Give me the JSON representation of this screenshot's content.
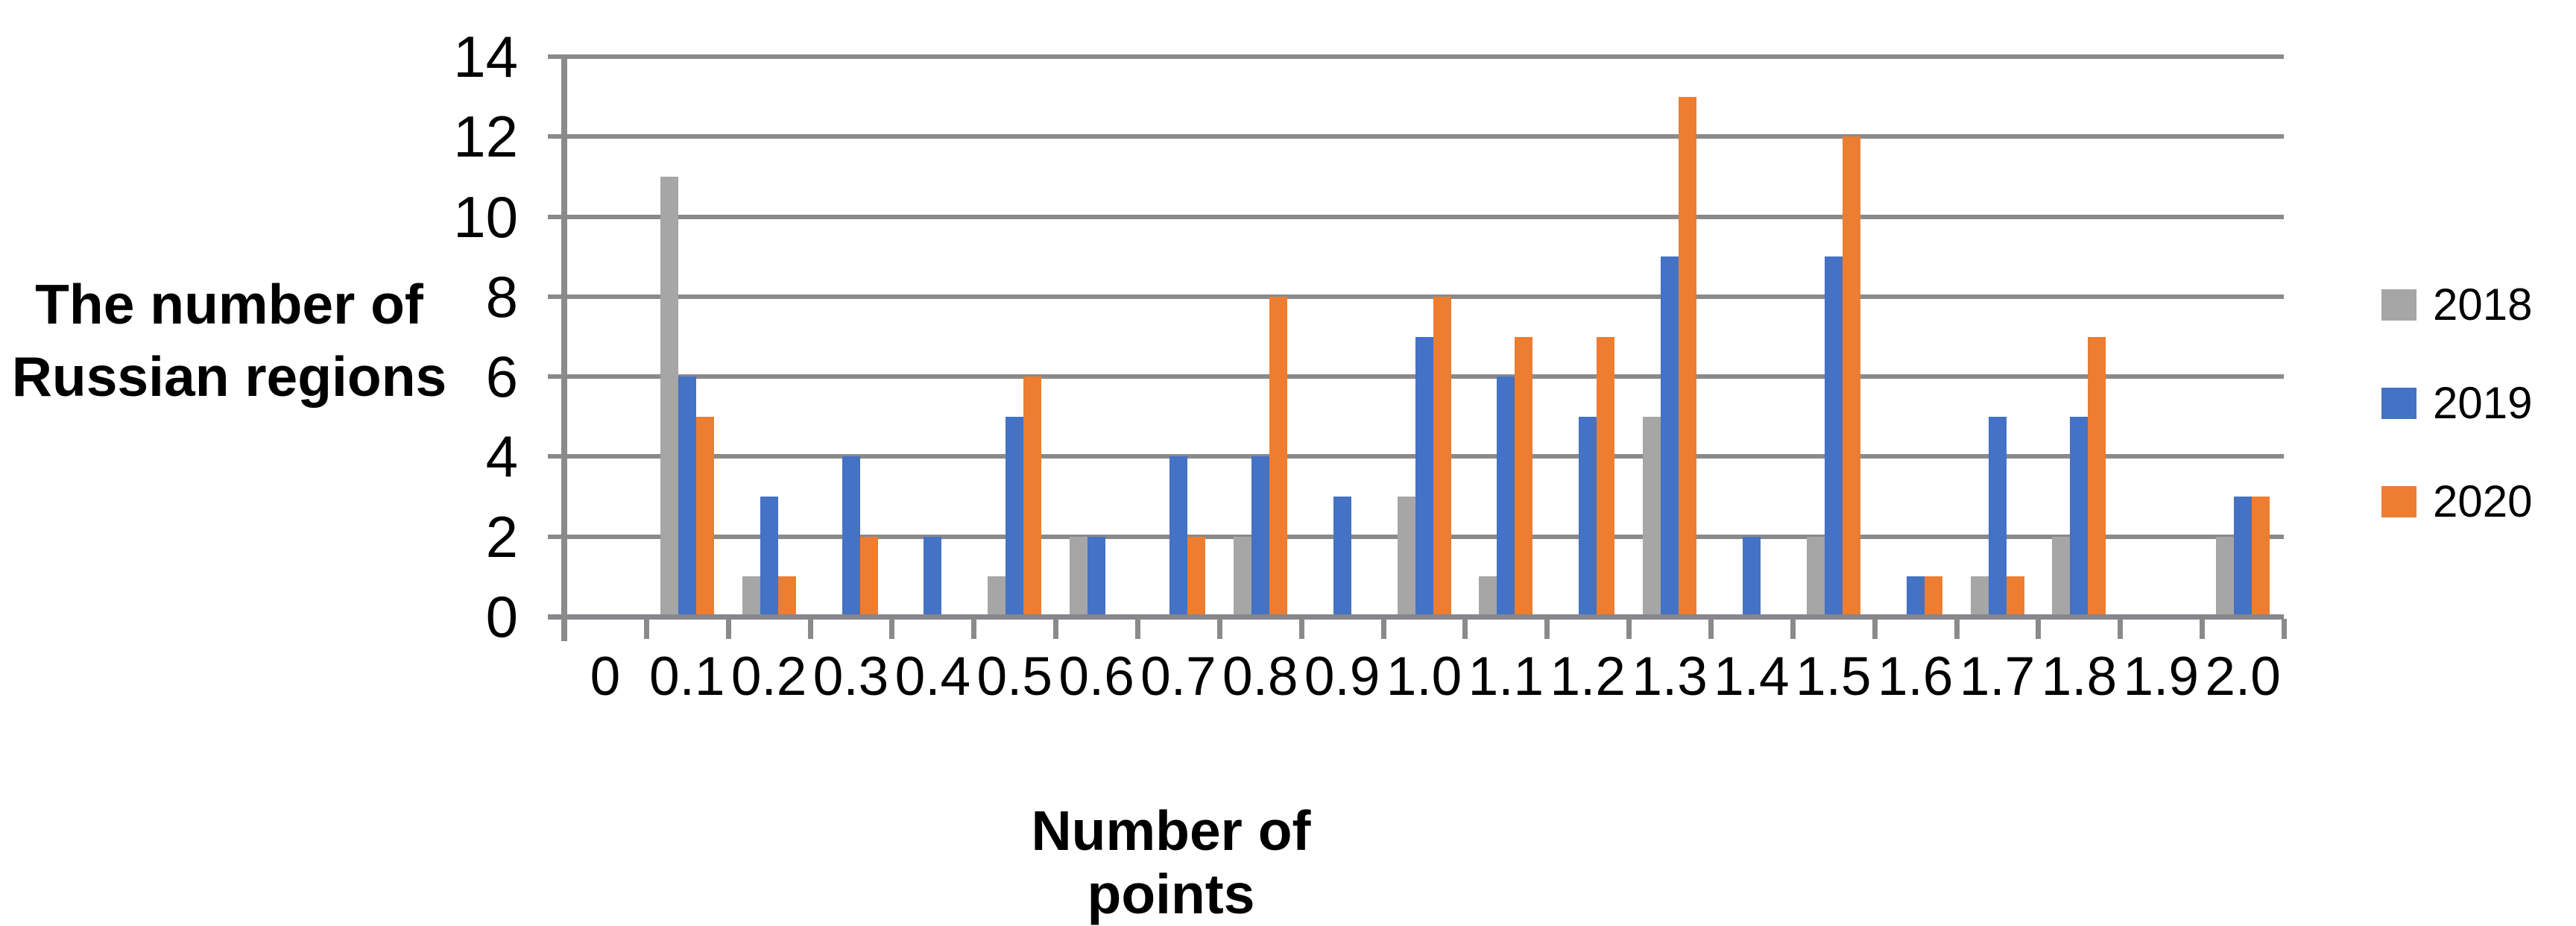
{
  "chart_data": {
    "type": "bar",
    "title": "",
    "xlabel": "Number of points",
    "ylabel": "The number of Russian regions",
    "ylabel_lines": [
      "The number of",
      "Russian regions"
    ],
    "categories": [
      "0",
      "0.1",
      "0.2",
      "0.3",
      "0.4",
      "0.5",
      "0.6",
      "0.7",
      "0.8",
      "0.9",
      "1.0",
      "1.1",
      "1.2",
      "1.3",
      "1.4",
      "1.5",
      "1.6",
      "1.7",
      "1.8",
      "1.9",
      "2.0"
    ],
    "series": [
      {
        "name": "2018",
        "color": "#A6A6A6",
        "values": [
          0,
          11,
          1,
          0,
          0,
          1,
          2,
          0,
          2,
          0,
          3,
          1,
          0,
          5,
          0,
          2,
          0,
          1,
          2,
          0,
          2
        ]
      },
      {
        "name": "2019",
        "color": "#4472C4",
        "values": [
          0,
          6,
          3,
          4,
          2,
          5,
          2,
          4,
          4,
          3,
          7,
          6,
          5,
          9,
          2,
          9,
          1,
          5,
          5,
          0,
          3
        ]
      },
      {
        "name": "2020",
        "color": "#ED7D31",
        "values": [
          0,
          5,
          1,
          2,
          0,
          6,
          0,
          2,
          8,
          0,
          8,
          7,
          7,
          13,
          0,
          12,
          1,
          1,
          7,
          0,
          3
        ]
      }
    ],
    "ylim": [
      0,
      14
    ],
    "yticks": [
      0,
      2,
      4,
      6,
      8,
      10,
      12,
      14
    ],
    "grid": true,
    "legend_position": "right",
    "gridline_color": "#8A8A8A",
    "background": "#FFFFFF"
  }
}
